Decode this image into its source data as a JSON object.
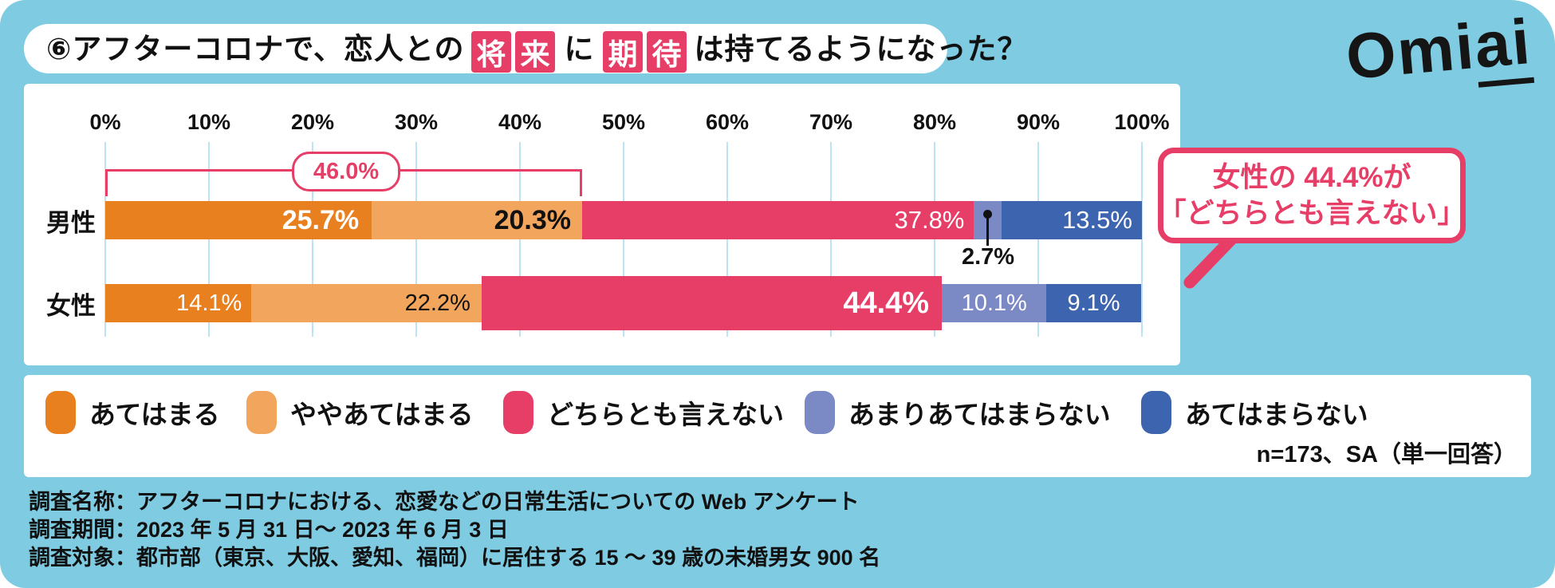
{
  "title": {
    "prefix": "⑥アフターコロナで、恋人との",
    "highlight1": [
      "将",
      "来"
    ],
    "connector": "に",
    "highlight2": [
      "期",
      "待"
    ],
    "suffix": "は持てるようになった？"
  },
  "logo": {
    "prefix": "Omi",
    "underlined": "ai"
  },
  "chart_data": {
    "type": "bar",
    "stacked": true,
    "orientation": "horizontal",
    "title": "⑥アフターコロナで、恋人との将来に期待は持てるようになった？",
    "categories": [
      "男性",
      "女性"
    ],
    "series": [
      {
        "name": "あてはまる",
        "color": "#E8801F",
        "values": [
          25.7,
          14.1
        ]
      },
      {
        "name": "ややあてはまる",
        "color": "#F2A55C",
        "values": [
          20.3,
          22.2
        ]
      },
      {
        "name": "どちらとも言えない",
        "color": "#E73E68",
        "values": [
          37.8,
          44.4
        ]
      },
      {
        "name": "あまりあてはまらない",
        "color": "#7B89C4",
        "values": [
          2.7,
          10.1
        ]
      },
      {
        "name": "あてはまらない",
        "color": "#3D64AE",
        "values": [
          13.5,
          9.1
        ]
      }
    ],
    "x_ticks": [
      "0%",
      "10%",
      "20%",
      "30%",
      "40%",
      "50%",
      "60%",
      "70%",
      "80%",
      "90%",
      "100%"
    ],
    "xlim": [
      0,
      100
    ],
    "gridlines": true,
    "legend_position": "bottom",
    "value_suffix": "%",
    "annotations": {
      "bracket": {
        "label": "46.0%",
        "from": 0,
        "to": 46.0,
        "row_index": 0
      },
      "leader_label": {
        "text": "2.7%",
        "row_index": 0,
        "series_index": 3
      },
      "callout_bubble": {
        "line1": "女性の 44.4%が",
        "line2": "「どちらとも言えない」"
      }
    }
  },
  "note": "n=173、SA（単一回答）",
  "footer": {
    "line1": "調査名称：アフターコロナにおける、恋愛などの日常生活についての Web アンケート",
    "line2": "調査期間：2023 年 5 月 31 日～ 2023 年 6 月 3 日",
    "line3": "調査対象：都市部（東京、大阪、愛知、福岡）に居住する 15 ～ 39 歳の未婚男女 900 名"
  },
  "colors": {
    "background": "#7FCBE1",
    "accent_pink": "#E73E68",
    "gridline": "#BCE3F1",
    "panel": "#FFFFFF",
    "text": "#111111"
  }
}
